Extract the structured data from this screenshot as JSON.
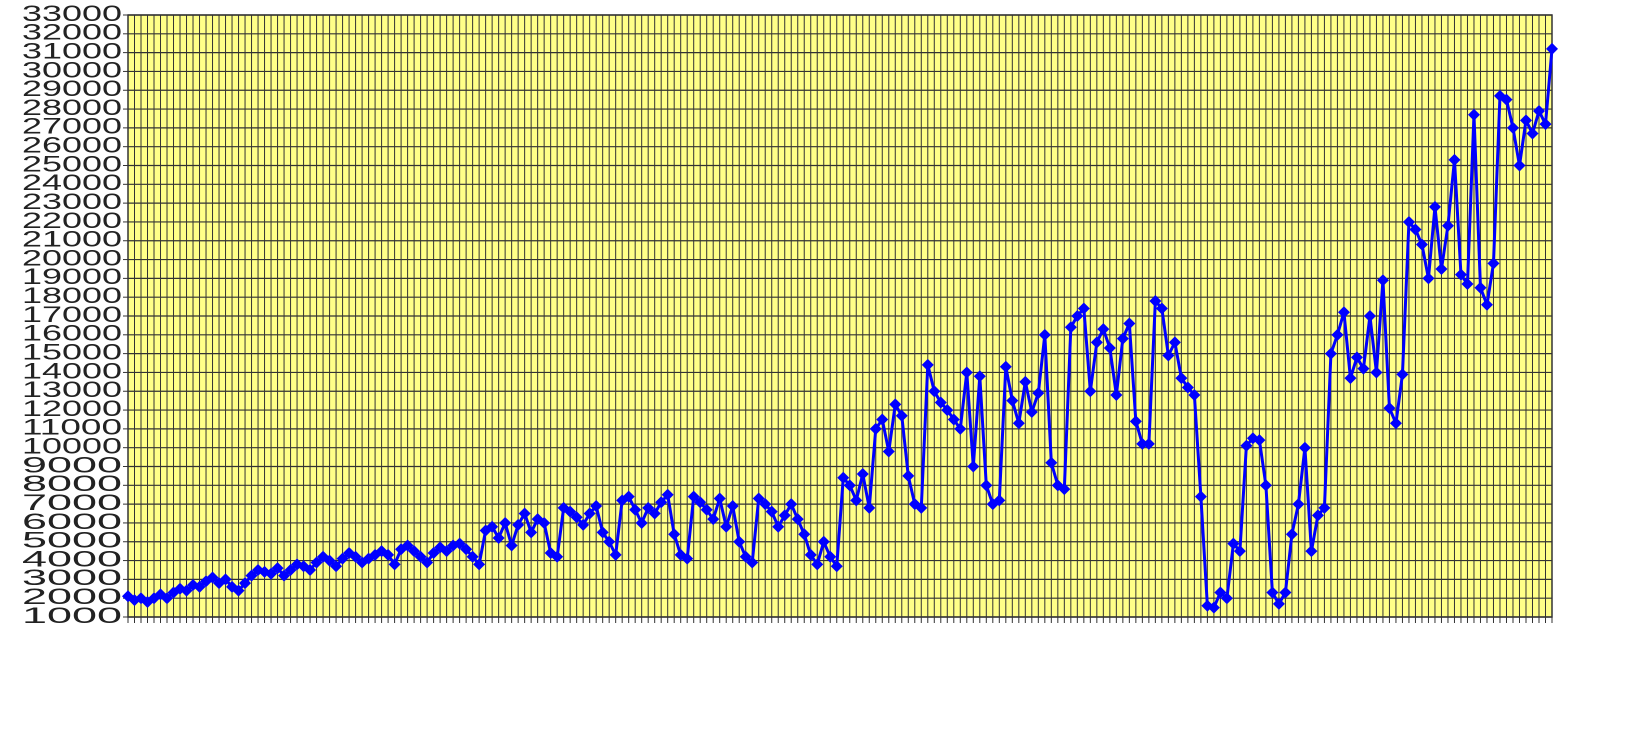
{
  "chart_data": {
    "type": "line",
    "categories": [
      null,
      null,
      null,
      null,
      null,
      null,
      null,
      null,
      null,
      null,
      null,
      null,
      null,
      null,
      null,
      null,
      null,
      null,
      null,
      null,
      null,
      null,
      null,
      null,
      null,
      null,
      null,
      null,
      null,
      null,
      null,
      null,
      null,
      null,
      null,
      null,
      null,
      null,
      null,
      null,
      null,
      null,
      null,
      null,
      null,
      null,
      null,
      null,
      null,
      null,
      null,
      null,
      null,
      null,
      null,
      null,
      null,
      null,
      null,
      null,
      null,
      null,
      null,
      null,
      null,
      null,
      null,
      null,
      null,
      null,
      null,
      null,
      null,
      null,
      null,
      null,
      null,
      null,
      null,
      null,
      null,
      null,
      null,
      null,
      null,
      null,
      null,
      null,
      null,
      null,
      null,
      null,
      null,
      null,
      null,
      null,
      null,
      null,
      null,
      null,
      null,
      null,
      null,
      null,
      null,
      null,
      null,
      null,
      null,
      null,
      null,
      null,
      null,
      null,
      null,
      null,
      null,
      null,
      null,
      null,
      null,
      null,
      null,
      null,
      null,
      null,
      null,
      null,
      null,
      null,
      null,
      null,
      null,
      null,
      null,
      null,
      null,
      null,
      null,
      null,
      null,
      null,
      null,
      null,
      null,
      null,
      null,
      null,
      null,
      null,
      null,
      null,
      null,
      null,
      null,
      null,
      null,
      null,
      null,
      null,
      null,
      null,
      null,
      null,
      null,
      null,
      null,
      null,
      null,
      null,
      null,
      null,
      null,
      null,
      null,
      null,
      null,
      null,
      null,
      null,
      null,
      null,
      null,
      null,
      null,
      null,
      null,
      null,
      null,
      null,
      null,
      null,
      null,
      null,
      null,
      null,
      null,
      null,
      null,
      null,
      null,
      null,
      null,
      null,
      null,
      null,
      null,
      null,
      null,
      null,
      null,
      null,
      null,
      null,
      null,
      null,
      null,
      null,
      null,
      null
    ],
    "series": [
      {
        "color": "#0000ff",
        "values": [
          2100,
          1900,
          2000,
          1800,
          2000,
          2200,
          2000,
          2300,
          2500,
          2400,
          2700,
          2600,
          2900,
          3100,
          2800,
          3000,
          2600,
          2400,
          2800,
          3200,
          3500,
          3400,
          3300,
          3600,
          3200,
          3500,
          3800,
          3700,
          3500,
          3900,
          4200,
          4000,
          3700,
          4100,
          4400,
          4200,
          3900,
          4100,
          4300,
          4500,
          4300,
          3800,
          4600,
          4800,
          4500,
          4200,
          3900,
          4400,
          4700,
          4500,
          4800,
          4900,
          4600,
          4200,
          3800,
          5600,
          5800,
          5200,
          6000,
          4800,
          5900,
          6500,
          5500,
          6200,
          6000,
          4400,
          4200,
          6800,
          6600,
          6300,
          5900,
          6500,
          6900,
          5500,
          5000,
          4300,
          7200,
          7400,
          6700,
          6000,
          6800,
          6500,
          7100,
          7500,
          5400,
          4300,
          4100,
          7400,
          7100,
          6700,
          6200,
          7300,
          5800,
          6900,
          5000,
          4200,
          3900,
          7300,
          7000,
          6600,
          5800,
          6400,
          7000,
          6200,
          5400,
          4300,
          3800,
          5000,
          4200,
          3700,
          8400,
          8000,
          7200,
          8600,
          6800,
          11000,
          11500,
          9800,
          12300,
          11700,
          8500,
          7000,
          6800,
          14400,
          13000,
          12400,
          12000,
          11500,
          11000,
          14000,
          9000,
          13800,
          8000,
          7000,
          7200,
          14300,
          12500,
          11300,
          13500,
          11900,
          12900,
          16000,
          9200,
          8000,
          7800,
          16400,
          17000,
          17400,
          13000,
          15600,
          16300,
          15300,
          12800,
          15800,
          16600,
          11400,
          10200,
          10200,
          17800,
          17400,
          14900,
          15600,
          13700,
          13200,
          12800,
          7400,
          1600,
          1500,
          2300,
          2000,
          4900,
          4500,
          10100,
          10500,
          10400,
          8000,
          2300,
          1700,
          2300,
          5400,
          7000,
          10000,
          4500,
          6400,
          6800,
          15000,
          16000,
          17200,
          13700,
          14800,
          14200,
          17000,
          14000,
          18900,
          12100,
          11300,
          13900,
          22000,
          21600,
          20800,
          19000,
          22800,
          19500,
          21800,
          25300,
          19200,
          18700,
          27700,
          18500,
          17600,
          19800,
          28700,
          28500,
          27000,
          25000,
          27400,
          26700,
          27900,
          27200,
          31200
        ]
      }
    ],
    "ylim": [
      1000,
      33000
    ],
    "yticks": [
      1000,
      2000,
      3000,
      4000,
      5000,
      6000,
      7000,
      8000,
      9000,
      10000,
      11000,
      12000,
      13000,
      14000,
      15000,
      16000,
      17000,
      18000,
      19000,
      20000,
      21000,
      22000,
      23000,
      24000,
      25000,
      26000,
      27000,
      28000,
      29000,
      30000,
      31000,
      32000,
      33000
    ],
    "grid": true,
    "background": "#ffff88",
    "grid_color": "#333333"
  }
}
